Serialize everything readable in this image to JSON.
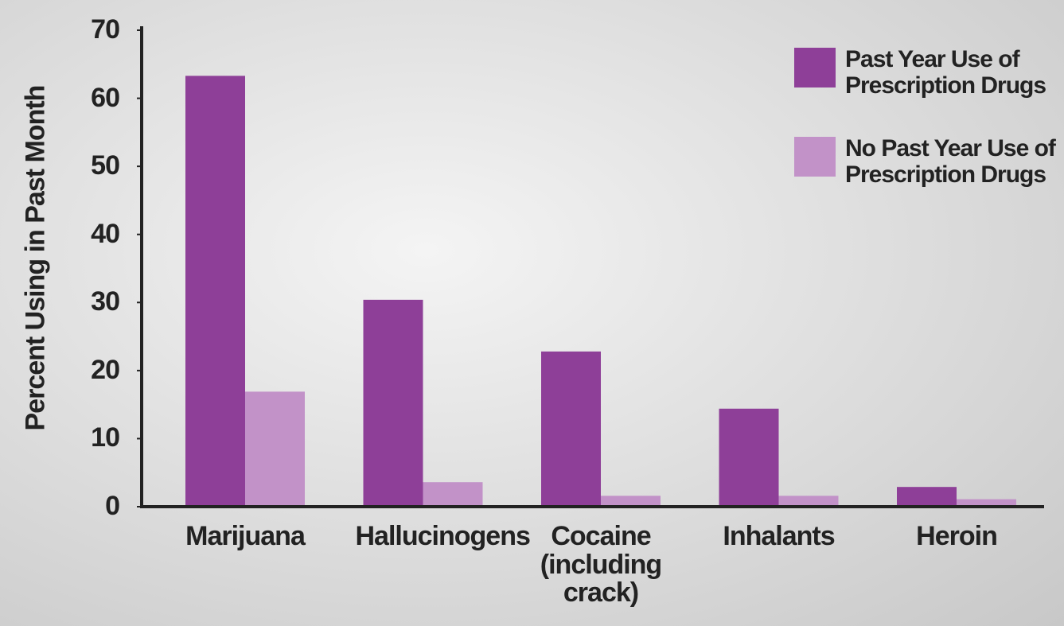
{
  "chart_data": {
    "type": "bar",
    "y_label": "Percent Using in Past Month",
    "categories": [
      "Marijuana",
      "Hallucinogens",
      "Cocaine (including crack)",
      "Inhalants",
      "Heroin"
    ],
    "series": [
      {
        "name": "Past Year Use of Prescription Drugs",
        "color": "#8e3f98",
        "values": [
          63.3,
          30.4,
          22.8,
          14.4,
          2.9
        ]
      },
      {
        "name": "No Past Year Use of Prescription Drugs",
        "color": "#c292c8",
        "values": [
          16.9,
          3.6,
          1.6,
          1.6,
          1.1
        ]
      }
    ],
    "ylim": [
      0,
      70
    ],
    "yticks": [
      0,
      10,
      20,
      30,
      40,
      50,
      60,
      70
    ],
    "legend": "upper right"
  }
}
